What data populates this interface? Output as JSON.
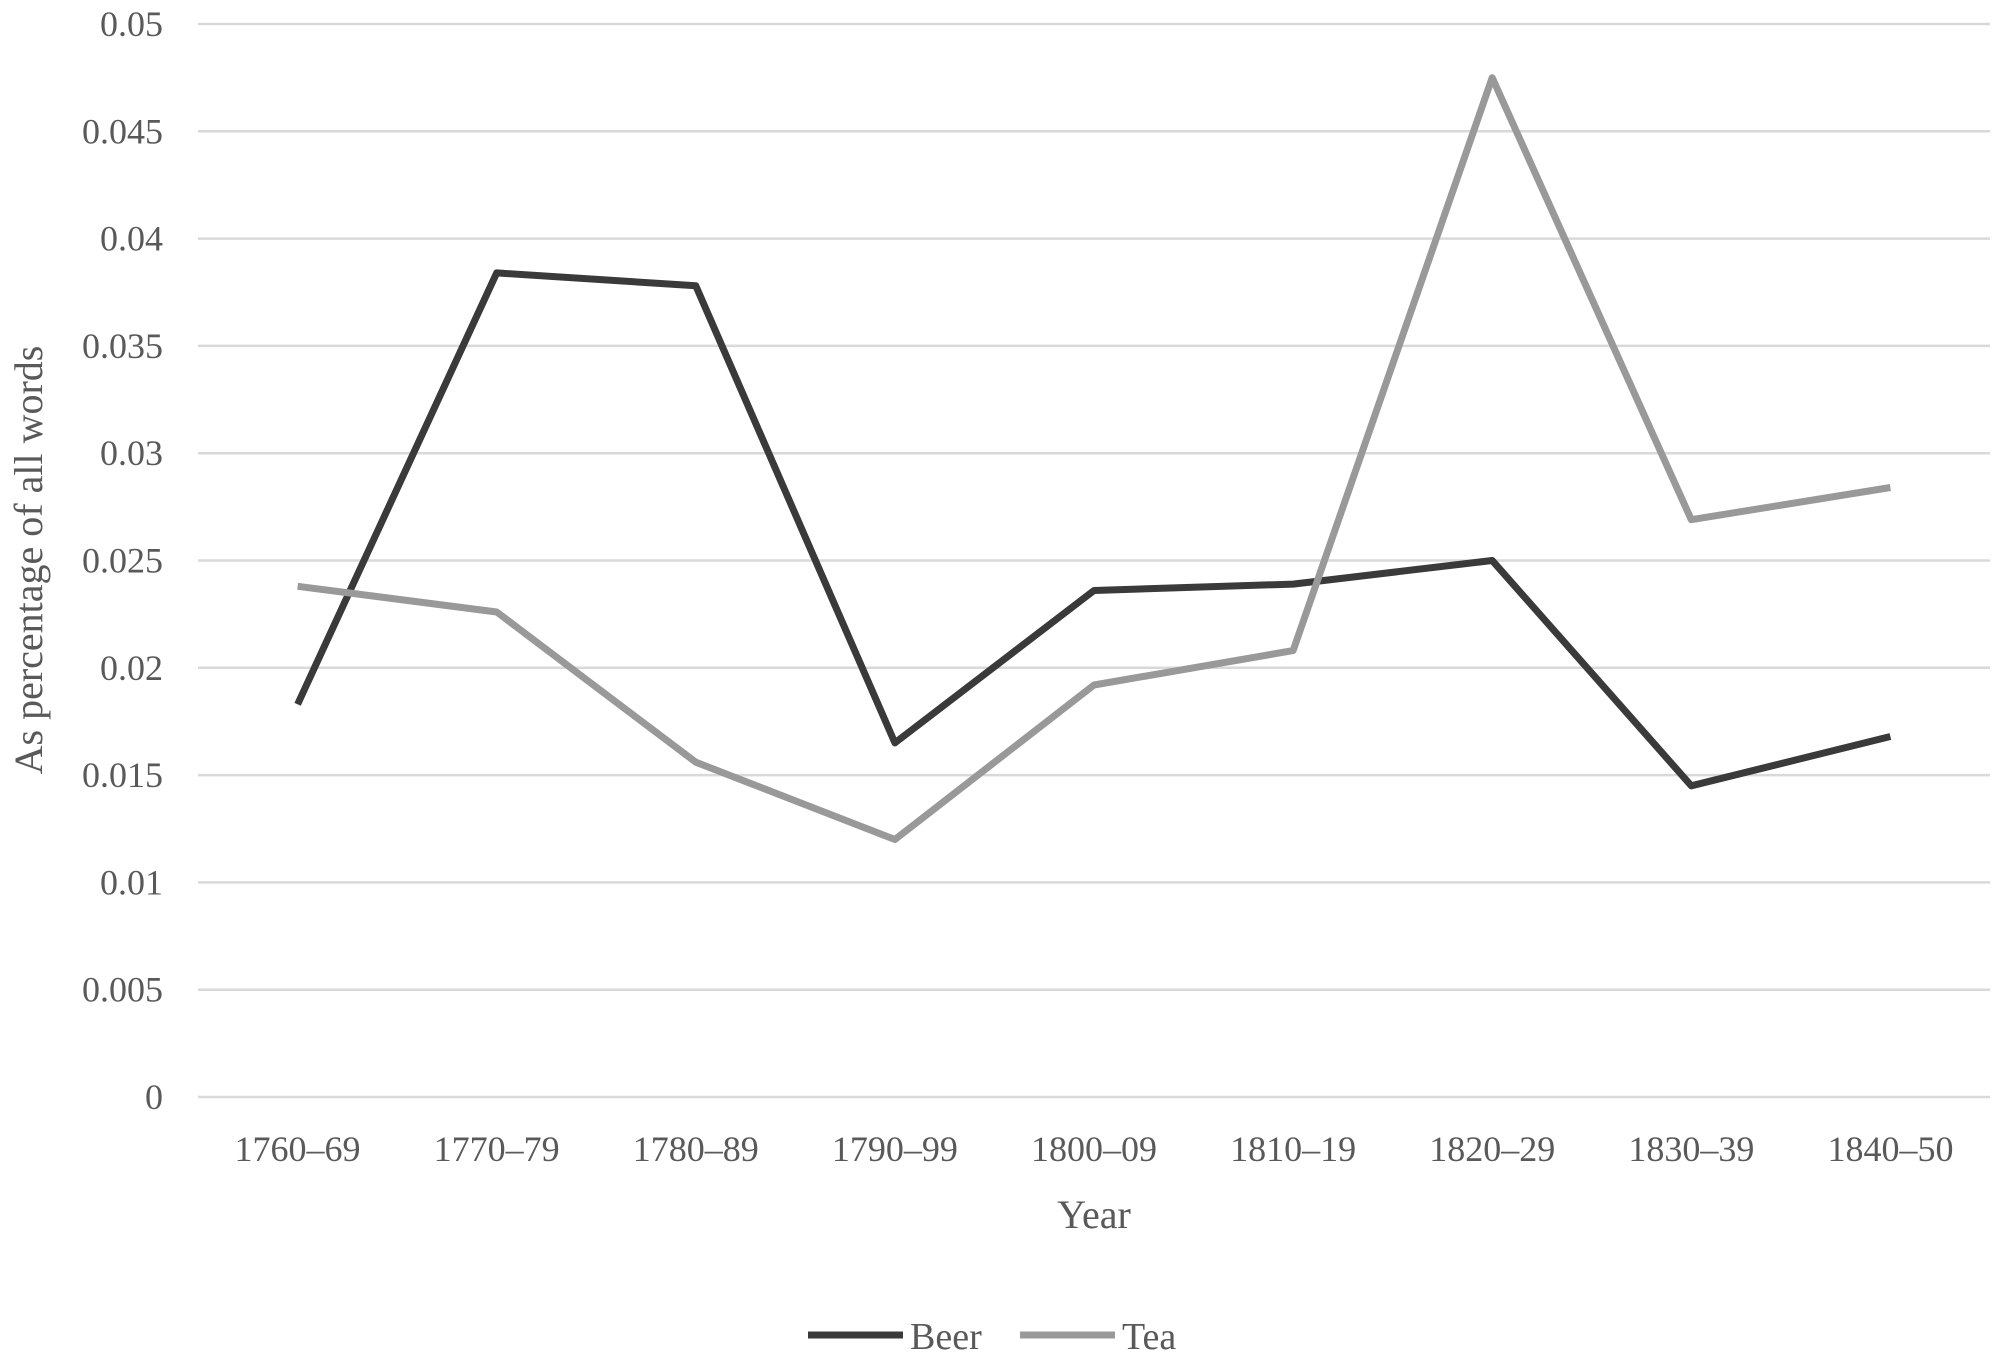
{
  "chart_data": {
    "type": "line",
    "title": "",
    "xlabel": "Year",
    "ylabel": "As percentage of all words",
    "categories": [
      "1760–69",
      "1770–79",
      "1780–89",
      "1790–99",
      "1800–09",
      "1810–19",
      "1820–29",
      "1830–39",
      "1840–50"
    ],
    "ylim": [
      0,
      0.05
    ],
    "yticks": [
      "0",
      "0.005",
      "0.01",
      "0.015",
      "0.02",
      "0.025",
      "0.03",
      "0.035",
      "0.04",
      "0.045",
      "0.05"
    ],
    "grid": true,
    "legend_position": "bottom",
    "series": [
      {
        "name": "Beer",
        "color": "#3a3a3a",
        "values": [
          0.0183,
          0.0384,
          0.0378,
          0.0165,
          0.0236,
          0.0239,
          0.025,
          0.0145,
          0.0168
        ]
      },
      {
        "name": "Tea",
        "color": "#999999",
        "values": [
          0.0238,
          0.0226,
          0.0156,
          0.012,
          0.0192,
          0.0208,
          0.0475,
          0.0269,
          0.0284
        ]
      }
    ]
  }
}
